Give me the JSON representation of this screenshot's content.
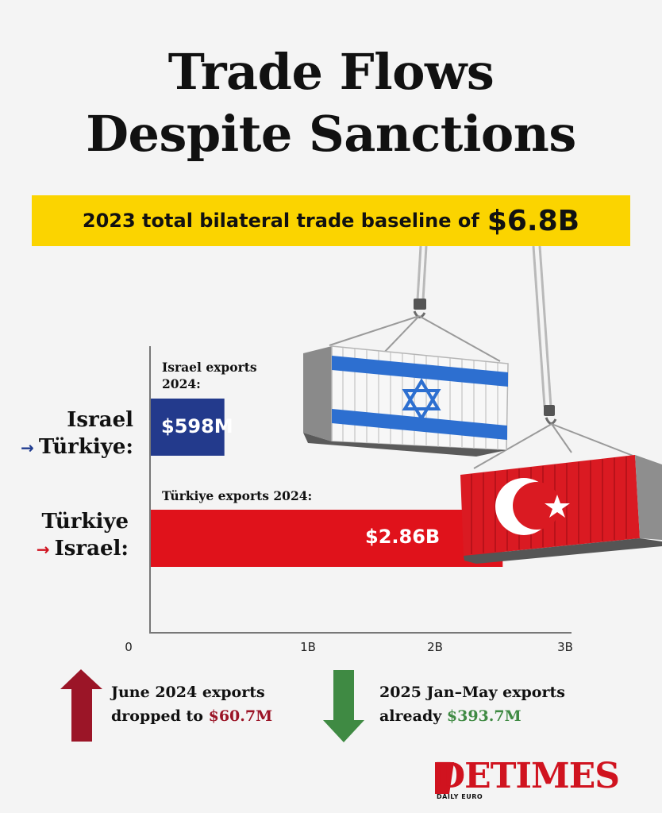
{
  "title": {
    "line1": "Trade Flows",
    "line2": "Despite Sanctions"
  },
  "banner": {
    "lead": "2023 total bilateral trade baseline of",
    "value": "$6.8B"
  },
  "chart_data": {
    "type": "bar",
    "orientation": "horizontal",
    "categories": [
      {
        "name": "Israel",
        "arrow": "→",
        "dest": "Türkiye:",
        "arrow_color": "#1f3b8f"
      },
      {
        "name": "Türkiye",
        "arrow": "→",
        "dest": "Israel:",
        "arrow_color": "#d0131f"
      }
    ],
    "values": [
      0.598,
      2.86
    ],
    "value_labels": [
      "$598M",
      "$2.86B"
    ],
    "annotations": [
      "Israel exports 2024:",
      "Türkiye exports 2024:"
    ],
    "bar_colors": [
      "#233a8c",
      "#e0121b"
    ],
    "x_ticks": [
      "0",
      "1B",
      "2B",
      "3B"
    ]
  },
  "stats": [
    {
      "text": "June 2024 exports",
      "text2": "dropped to ",
      "value": "$60.7M",
      "color": "#9b1527",
      "direction": "up-arrow-icon"
    },
    {
      "text": "2025 Jan–May exports",
      "text2": "already ",
      "value": "$393.7M",
      "color": "#3f8a43",
      "direction": "down-arrow-icon"
    }
  ],
  "logo": {
    "word": "DETIMES",
    "sub": "DAILY EURO"
  }
}
